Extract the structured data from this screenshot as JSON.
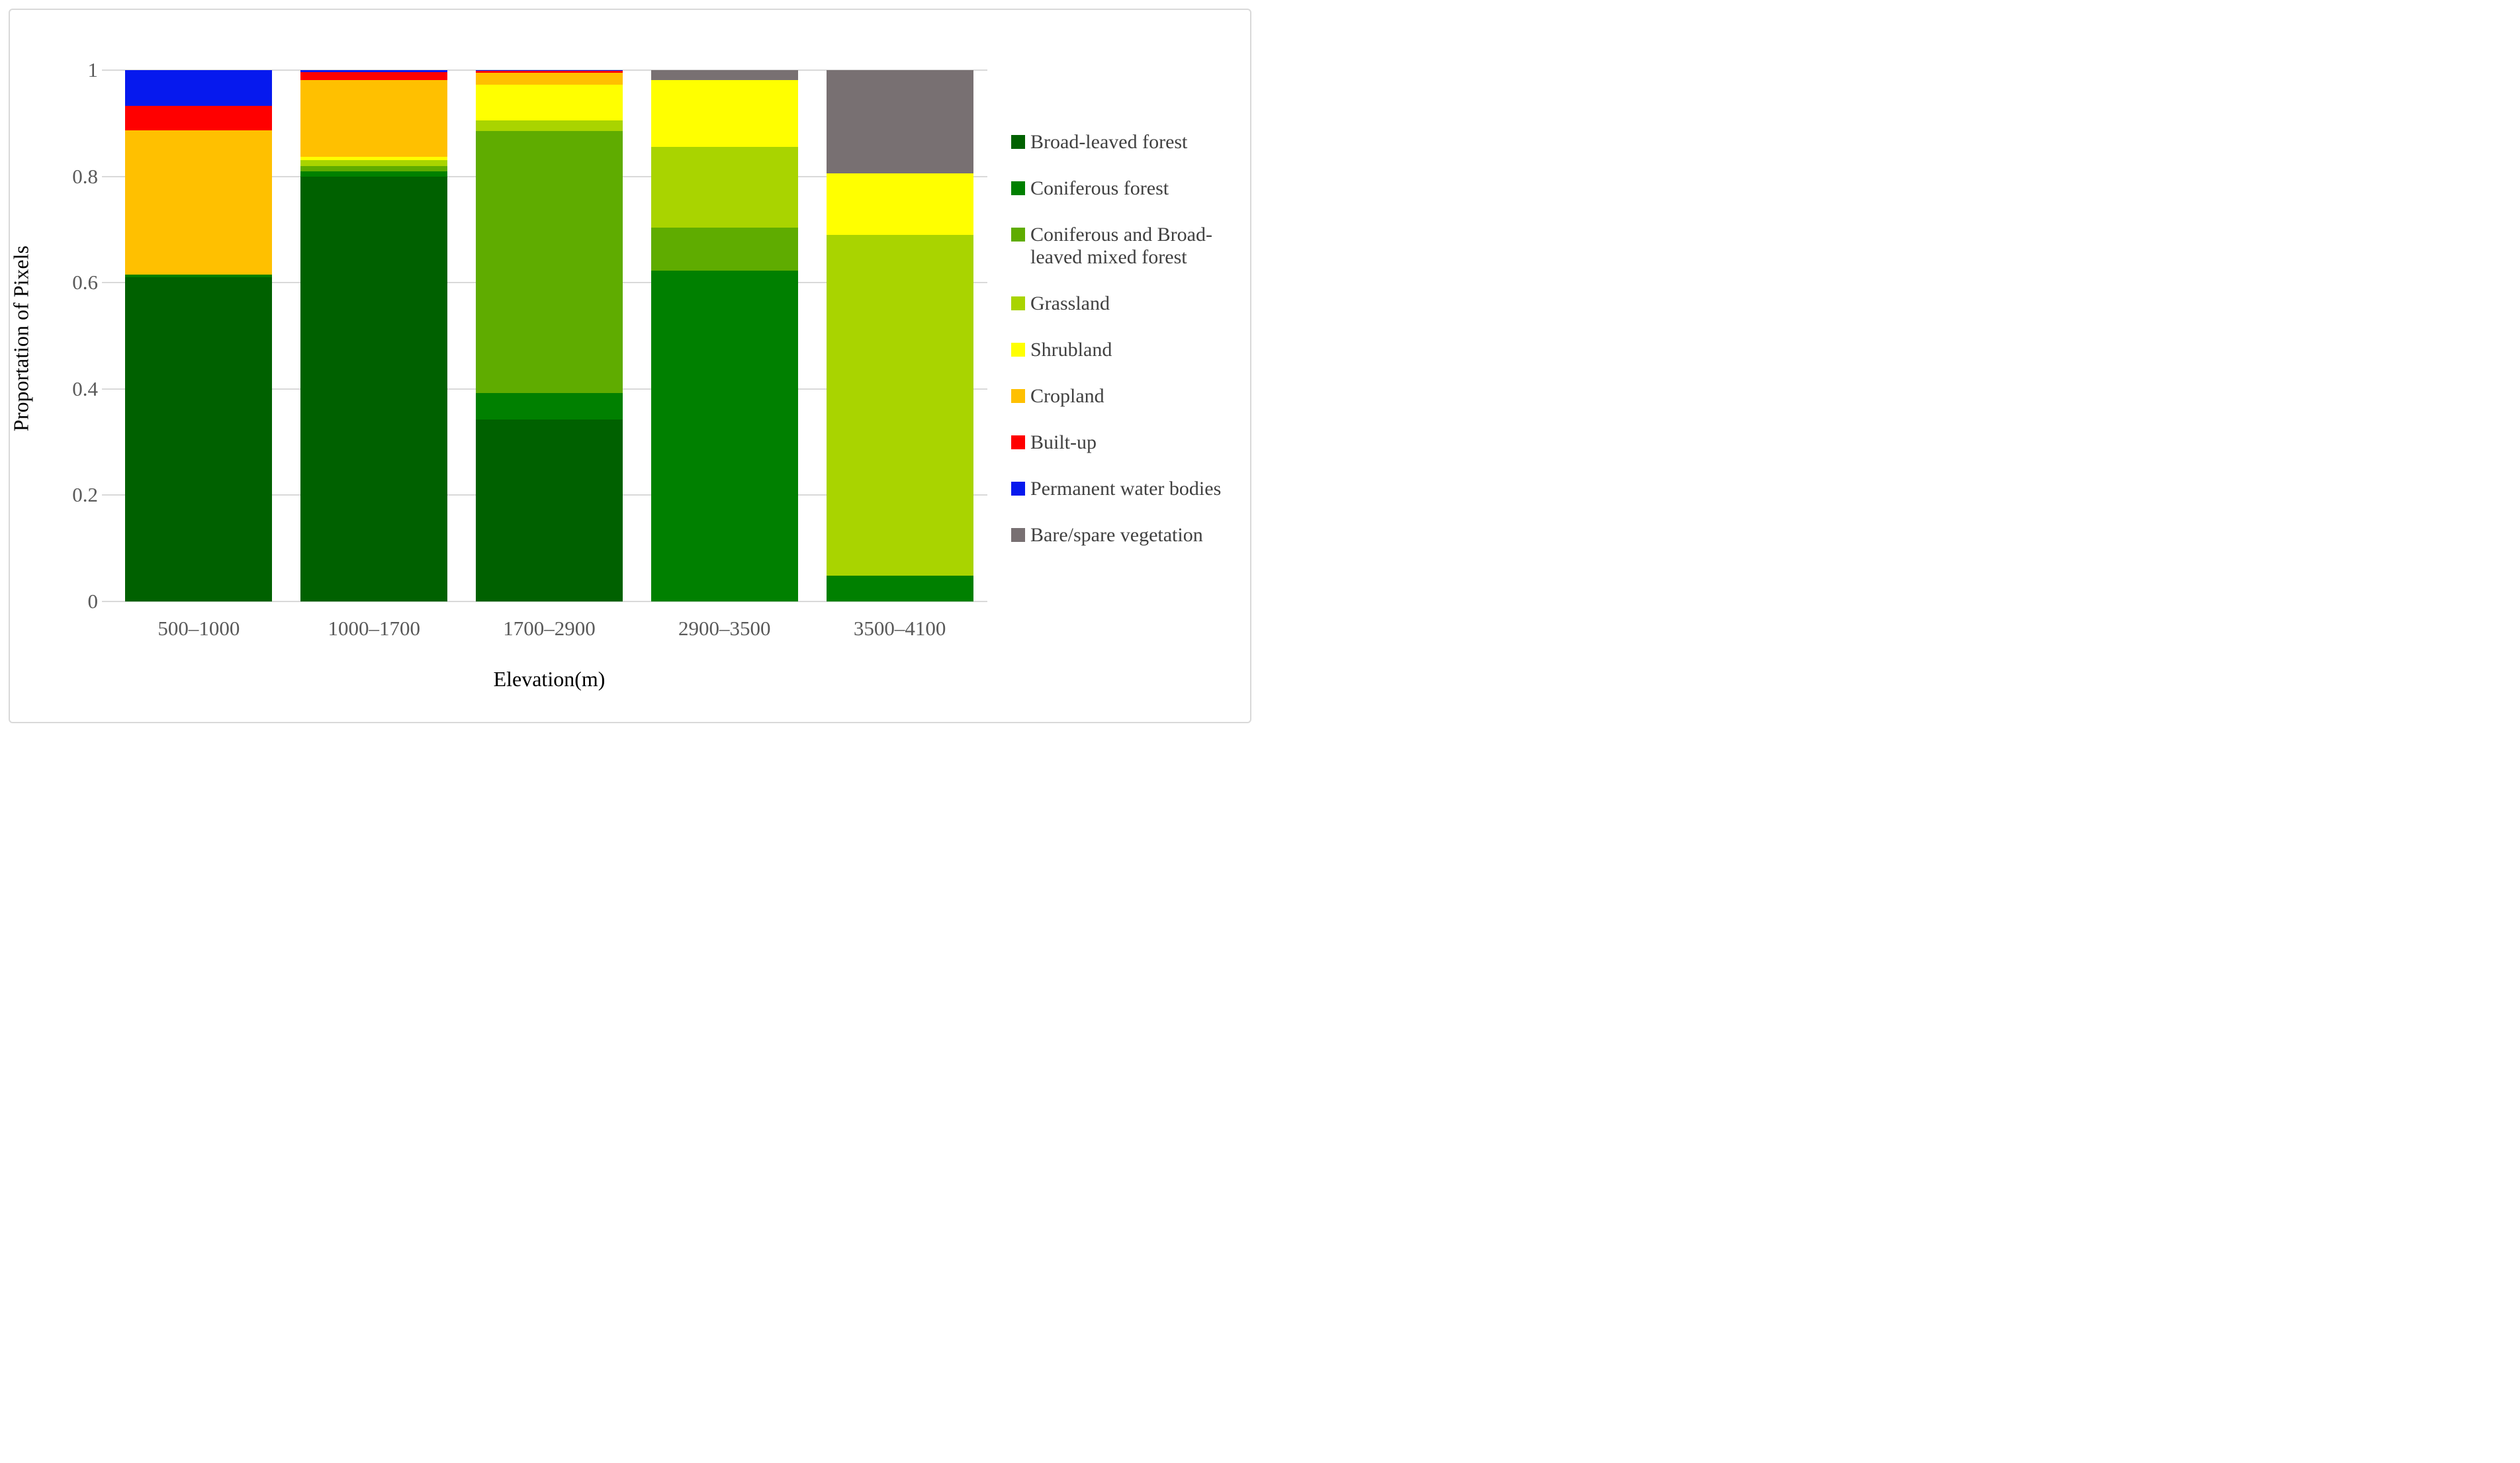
{
  "figure": {
    "background": "#ffffff",
    "border_color": "#d9d9d9",
    "gridline_color": "#d9d9d9",
    "tick_label_color": "#595959",
    "axis_title_color": "#000000"
  },
  "chart_data": {
    "type": "bar",
    "stacked": true,
    "title": "",
    "xlabel": "Elevation(m)",
    "ylabel": "Proportation of Pixels",
    "categories": [
      "500–1000",
      "1000–1700",
      "1700–2900",
      "2900–3500",
      "3500–4100"
    ],
    "y_ticks": [
      "1",
      "0.8",
      "0.6",
      "0.4",
      "0.2",
      "0"
    ],
    "ylim": [
      0,
      1
    ],
    "grid": true,
    "legend_position": "right",
    "series": [
      {
        "name": "Broad-leaved forest",
        "color": "#006100",
        "values": [
          0.61,
          0.8,
          0.343,
          0.0,
          0.0
        ]
      },
      {
        "name": "Coniferous forest",
        "color": "#008000",
        "values": [
          0.005,
          0.01,
          0.049,
          0.623,
          0.049
        ]
      },
      {
        "name": "Coniferous and Broad-leaved mixed forest",
        "color": "#5fac00",
        "values": [
          0.0,
          0.01,
          0.493,
          0.081,
          0.0
        ]
      },
      {
        "name": "Grassland",
        "color": "#a9d400",
        "values": [
          0.0,
          0.011,
          0.02,
          0.151,
          0.641
        ]
      },
      {
        "name": "Shrubland",
        "color": "#ffff00",
        "values": [
          0.0,
          0.006,
          0.068,
          0.126,
          0.116
        ]
      },
      {
        "name": "Cropland",
        "color": "#ffc000",
        "values": [
          0.272,
          0.145,
          0.022,
          0.0,
          0.0
        ]
      },
      {
        "name": "Built-up",
        "color": "#ff0000",
        "values": [
          0.046,
          0.014,
          0.004,
          0.0,
          0.0
        ]
      },
      {
        "name": "Permanent water bodies",
        "color": "#0619ee",
        "values": [
          0.067,
          0.004,
          0.001,
          0.0,
          0.0
        ]
      },
      {
        "name": "Bare/spare vegetation",
        "color": "#787072",
        "values": [
          0.0,
          0.0,
          0.0,
          0.019,
          0.194
        ]
      }
    ]
  }
}
